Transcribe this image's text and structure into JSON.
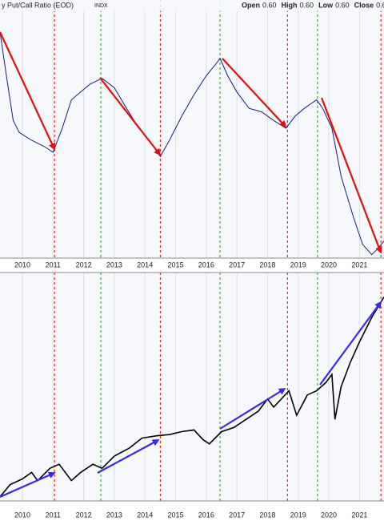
{
  "chart_data": [
    {
      "type": "line",
      "title": "y Put/Call Ratio (EOD)",
      "subtitle": "INDX",
      "header": [
        {
          "label": "Open",
          "value": "0.60"
        },
        {
          "label": "High",
          "value": "0.60"
        },
        {
          "label": "Low",
          "value": "0.60"
        },
        {
          "label": "Close",
          "value": "0.6"
        }
      ],
      "color": "#1a1a7a",
      "grid": true,
      "xlim": [
        2009.27,
        2021.8
      ],
      "xticks": [
        2010,
        2011,
        2012,
        2013,
        2014,
        2015,
        2016,
        2017,
        2018,
        2019,
        2020,
        2021
      ],
      "ylim": [
        0.58,
        0.88
      ],
      "x": [
        2009.27,
        2009.5,
        2009.7,
        2009.9,
        2010.3,
        2010.7,
        2011.0,
        2011.3,
        2011.6,
        2011.9,
        2012.2,
        2012.6,
        2013.0,
        2013.4,
        2013.8,
        2014.2,
        2014.5,
        2014.8,
        2015.2,
        2015.6,
        2016.0,
        2016.3,
        2016.45,
        2016.7,
        2017.0,
        2017.4,
        2017.8,
        2018.2,
        2018.6,
        2018.9,
        2019.2,
        2019.6,
        2019.8,
        2020.1,
        2020.4,
        2020.8,
        2021.1,
        2021.4,
        2021.6,
        2021.8
      ],
      "values": [
        0.843,
        0.787,
        0.74,
        0.726,
        0.717,
        0.71,
        0.703,
        0.731,
        0.764,
        0.773,
        0.782,
        0.789,
        0.778,
        0.754,
        0.731,
        0.714,
        0.698,
        0.717,
        0.745,
        0.77,
        0.792,
        0.805,
        0.812,
        0.792,
        0.773,
        0.754,
        0.75,
        0.74,
        0.731,
        0.745,
        0.754,
        0.764,
        0.754,
        0.731,
        0.675,
        0.628,
        0.596,
        0.584,
        0.591,
        0.6
      ]
    },
    {
      "type": "line",
      "color": "#000000",
      "grid": true,
      "xlim": [
        2009.27,
        2021.8
      ],
      "xticks": [
        2010,
        2011,
        2012,
        2013,
        2014,
        2015,
        2016,
        2017,
        2018,
        2019,
        2020,
        2021
      ],
      "ylim": [
        700,
        4900
      ],
      "x": [
        2009.27,
        2009.6,
        2010.0,
        2010.3,
        2010.5,
        2010.9,
        2011.2,
        2011.6,
        2011.9,
        2012.3,
        2012.6,
        2013.0,
        2013.5,
        2013.9,
        2014.4,
        2014.8,
        2015.2,
        2015.6,
        2015.9,
        2016.1,
        2016.5,
        2016.9,
        2017.3,
        2017.7,
        2018.0,
        2018.2,
        2018.7,
        2018.95,
        2019.3,
        2019.6,
        2019.9,
        2020.1,
        2020.2,
        2020.4,
        2020.7,
        2021.0,
        2021.4,
        2021.8
      ],
      "values": [
        775,
        1000,
        1105,
        1225,
        1075,
        1300,
        1375,
        1075,
        1225,
        1375,
        1300,
        1525,
        1675,
        1855,
        1900,
        1920,
        1975,
        2005,
        1825,
        1750,
        1975,
        2050,
        2200,
        2350,
        2575,
        2425,
        2725,
        2275,
        2650,
        2725,
        2875,
        3025,
        2200,
        2800,
        3250,
        3625,
        4075,
        4450
      ]
    }
  ],
  "markers": [
    {
      "x": 2011.05,
      "color": "#e00000"
    },
    {
      "x": 2012.56,
      "color": "#1a9a1a"
    },
    {
      "x": 2014.5,
      "color": "#e00000"
    },
    {
      "x": 2016.45,
      "color": "#1a9a1a"
    },
    {
      "x": 2018.65,
      "color": "#e00000"
    },
    {
      "x": 2019.63,
      "color": "#1a9a1a"
    },
    {
      "x": 2021.7,
      "color": "#e00000"
    }
  ]
}
